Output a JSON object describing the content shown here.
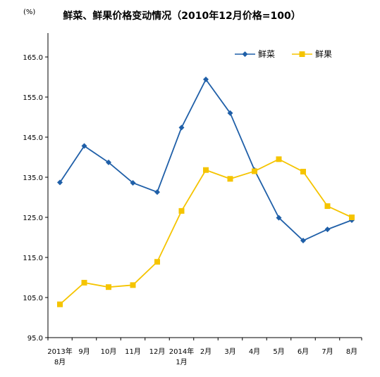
{
  "chart_data": {
    "type": "line",
    "title": "鲜菜、鲜果价格变动情况（2010年12月价格=100）",
    "y_unit": "(%)",
    "ylim": [
      95,
      175
    ],
    "y_ticks": [
      "165.0",
      "155.0",
      "145.0",
      "135.0",
      "125.0",
      "115.0",
      "105.0",
      "95.0"
    ],
    "y_tick_values": [
      165,
      155,
      145,
      135,
      125,
      115,
      105,
      95
    ],
    "categories": [
      [
        "2013年",
        "8月"
      ],
      [
        "9月"
      ],
      [
        "10月"
      ],
      [
        "11月"
      ],
      [
        "12月"
      ],
      [
        "2014年",
        "1月"
      ],
      [
        "2月"
      ],
      [
        "3月"
      ],
      [
        "4月"
      ],
      [
        "5月"
      ],
      [
        "6月"
      ],
      [
        "7月"
      ],
      [
        "8月"
      ]
    ],
    "grid": false,
    "legend_position": "top-right",
    "series": [
      {
        "name": "鲜菜",
        "color": "#1f5fa8",
        "marker": "diamond",
        "values": [
          133.7,
          142.8,
          138.7,
          133.6,
          131.3,
          147.4,
          159.4,
          151.0,
          136.8,
          124.9,
          119.2,
          122.0,
          124.3
        ]
      },
      {
        "name": "鲜果",
        "color": "#f5c400",
        "marker": "square",
        "values": [
          103.3,
          108.7,
          107.6,
          108.1,
          113.9,
          126.6,
          136.8,
          134.6,
          136.5,
          139.5,
          136.4,
          127.8,
          125.0
        ]
      }
    ]
  }
}
